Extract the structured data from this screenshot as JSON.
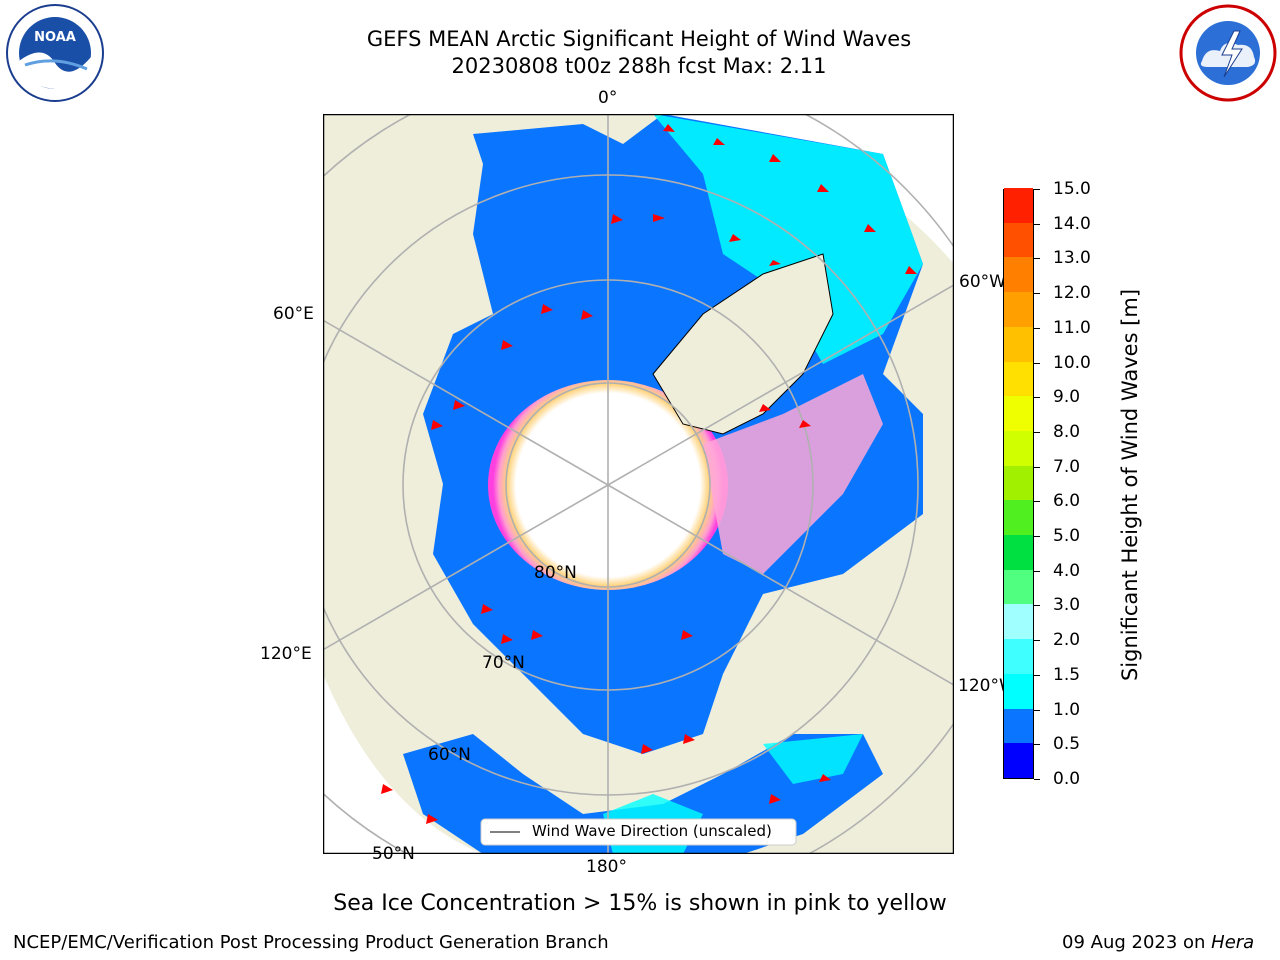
{
  "header": {
    "title_line1": "GEFS MEAN Arctic Significant Height of Wind Waves",
    "title_line2": "20230808 t00z 288h fcst   Max: 2.11"
  },
  "logos": {
    "noaa_text": "NOAA",
    "noaa_ring_text": "NATIONAL OCEANIC AND ATMOSPHERIC ADMINISTRATION · U.S. DEPARTMENT OF COMMERCE",
    "nws_ring_text": "NATIONAL WEATHER SERVICE"
  },
  "map": {
    "lon_labels": {
      "top": "0°",
      "right_upper": "60°W",
      "right_lower": "120°W",
      "bottom": "180°",
      "left_lower": "120°E",
      "left_upper": "60°E"
    },
    "lat_labels": {
      "lat80": "80°N",
      "lat70": "70°N",
      "lat60": "60°N",
      "lat50": "50°N"
    },
    "legend_label": "Wind Wave Direction (unscaled)",
    "colors": {
      "land": "#efeedb",
      "ocean_low": "#0a75ff",
      "ocean_calm": "#0000ff",
      "ocean_mid": "#00ffff",
      "ice_pink": "#ff69e0",
      "ice_yellow": "#ffd27a",
      "arrow": "#ff0000",
      "grid": "#b0b0b0"
    }
  },
  "colorbar": {
    "label": "Significant Height of Wind Waves [m]",
    "ticks": [
      "0.0",
      "0.5",
      "1.0",
      "1.5",
      "2.0",
      "3.0",
      "4.0",
      "5.0",
      "6.0",
      "7.0",
      "8.0",
      "9.0",
      "10.0",
      "11.0",
      "12.0",
      "13.0",
      "14.0",
      "15.0"
    ],
    "colors": [
      "#0000ff",
      "#0a75ff",
      "#00ffff",
      "#40ffff",
      "#a0ffff",
      "#50ff80",
      "#00e040",
      "#50f020",
      "#a0f000",
      "#d0ff00",
      "#f0ff00",
      "#ffe000",
      "#ffc000",
      "#ffa000",
      "#ff8000",
      "#ff5000",
      "#ff2000"
    ]
  },
  "footer": {
    "ice_note": "Sea Ice Concentration > 15% is shown in pink to yellow",
    "left": "NCEP/EMC/Verification Post Processing Product Generation Branch",
    "right_date": "09 Aug 2023 on ",
    "right_host": "Hera"
  }
}
